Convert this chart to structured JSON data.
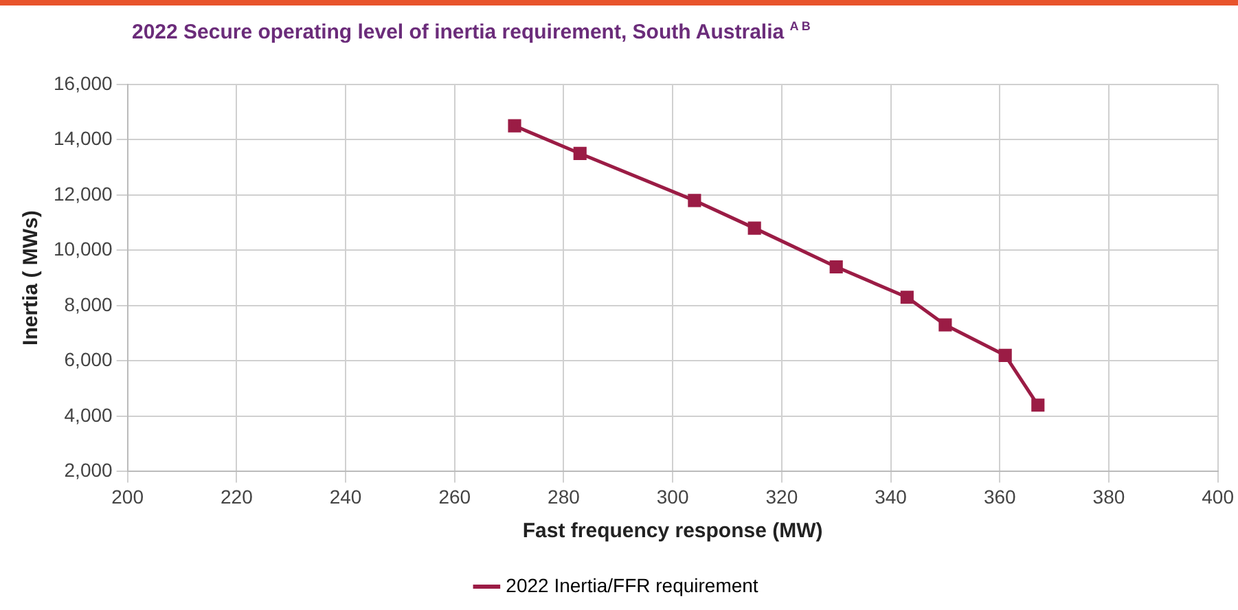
{
  "chart_data": {
    "type": "line",
    "title": "2022 Secure operating level of inertia requirement, South Australia $^{A B}$",
    "xlabel": "Fast frequency response (MW)",
    "ylabel": "Inertia ( MWs)",
    "x": [
      271,
      283,
      304,
      315,
      330,
      343,
      350,
      361,
      367
    ],
    "series": [
      {
        "name": "2022 Inertia/FFR requirement",
        "color": "#9b1c45",
        "values": [
          14500,
          13500,
          11800,
          10800,
          9400,
          8300,
          7300,
          6200,
          4400
        ]
      }
    ],
    "xlim": [
      200,
      400
    ],
    "xticks": [
      200,
      220,
      240,
      260,
      280,
      300,
      320,
      340,
      360,
      380,
      400
    ],
    "ylim": [
      2000,
      16000
    ],
    "yticks": [
      {
        "value": 2000,
        "label": "2,000"
      },
      {
        "value": 4000,
        "label": "4,000"
      },
      {
        "value": 6000,
        "label": "6,000"
      },
      {
        "value": 8000,
        "label": "8,000"
      },
      {
        "value": 10000,
        "label": "10,000"
      },
      {
        "value": 12000,
        "label": "12,000"
      },
      {
        "value": 14000,
        "label": "14,000"
      },
      {
        "value": 16000,
        "label": "16,000"
      }
    ],
    "grid": true,
    "legend": "bottom",
    "marker": "square",
    "line_style": "solid"
  }
}
